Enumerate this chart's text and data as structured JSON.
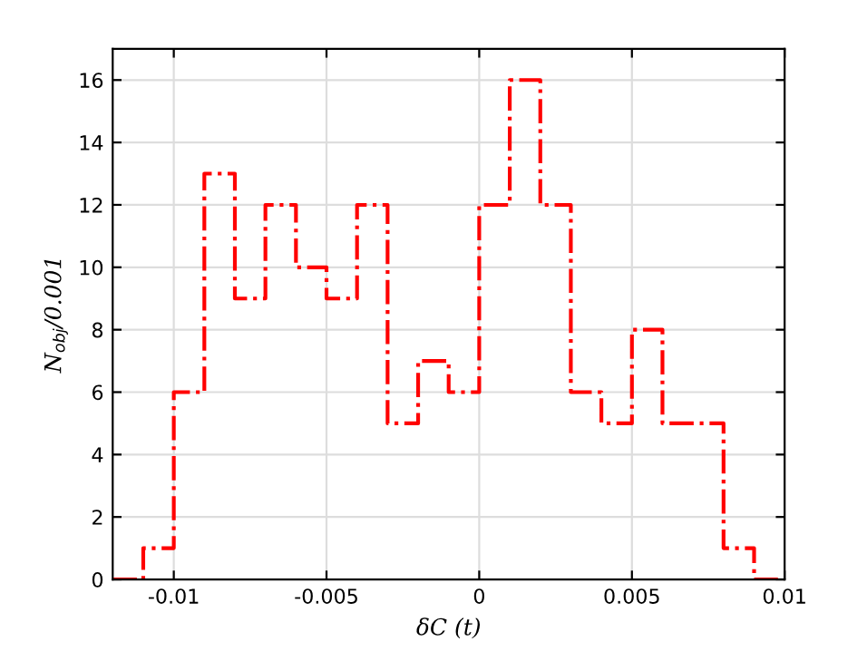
{
  "chart_data": {
    "type": "histogram",
    "xlabel": "δC (t)",
    "ylabel": "N$_{obj}$/0.001",
    "bins": [
      -0.012,
      -0.011,
      -0.01,
      -0.009,
      -0.008,
      -0.007,
      -0.006,
      -0.005,
      -0.004,
      -0.003,
      -0.002,
      -0.001,
      0,
      0.001,
      0.002,
      0.003,
      0.004,
      0.005,
      0.006,
      0.007,
      0.008,
      0.009,
      0.01
    ],
    "values": [
      0,
      1,
      6,
      13,
      9,
      12,
      10,
      9,
      12,
      5,
      7,
      6,
      12,
      16,
      12,
      6,
      5,
      8,
      5,
      5,
      1,
      0
    ],
    "color": "#ff0000",
    "line_style": "dashdot",
    "xlim": [
      -0.012,
      0.01
    ],
    "xticks": [
      -0.01,
      -0.005,
      0,
      0.005,
      0.01
    ],
    "ylim": [
      0,
      17
    ],
    "yticks": [
      0,
      2,
      4,
      6,
      8,
      10,
      12,
      14,
      16
    ],
    "grid": true
  }
}
